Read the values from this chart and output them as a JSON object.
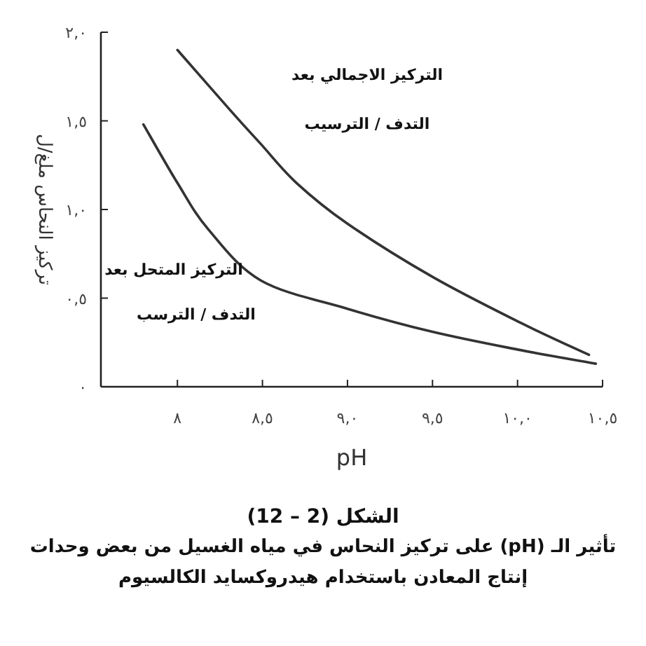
{
  "chart_data": {
    "type": "line",
    "title": "الشكل (2 – 12)",
    "subtitle": "تأثير الـ (pH) على تركيز النحاس في مياه الغسيل من بعض وحدات إنتاج المعادن باستخدام هيدروكسايد الكالسيوم",
    "xlabel": "pH",
    "ylabel": "تركيز النحاس ملغ/ل",
    "xlim": [
      7.55,
      10.5
    ],
    "ylim": [
      0,
      2.0
    ],
    "xticks": [
      {
        "value": 8,
        "label": "٨"
      },
      {
        "value": 8.5,
        "label": "٨,٥"
      },
      {
        "value": 9,
        "label": "٩,٠"
      },
      {
        "value": 9.5,
        "label": "٩,٥"
      },
      {
        "value": 10,
        "label": "١٠,٠"
      },
      {
        "value": 10.5,
        "label": "١٠,٥"
      }
    ],
    "yticks": [
      {
        "value": 0,
        "label": "٠"
      },
      {
        "value": 0.5,
        "label": "٠,٥"
      },
      {
        "value": 1,
        "label": "١,٠"
      },
      {
        "value": 1.5,
        "label": "١,٥"
      },
      {
        "value": 2,
        "label": "٢,٠"
      }
    ],
    "grid": false,
    "marker": "none",
    "line_style": "solid",
    "series": [
      {
        "color": "#333333",
        "x": [
          8.0,
          8.32,
          8.49,
          8.7,
          9.0,
          9.5,
          10.02,
          10.42
        ],
        "values": [
          1.9,
          1.55,
          1.37,
          1.15,
          0.92,
          0.62,
          0.36,
          0.18
        ]
      },
      {
        "color": "#333333",
        "x": [
          7.8,
          8.0,
          8.18,
          8.49,
          9.0,
          9.5,
          10.0,
          10.46
        ],
        "values": [
          1.48,
          1.15,
          0.89,
          0.6,
          0.44,
          0.31,
          0.21,
          0.13
        ]
      }
    ],
    "annotations": [
      "التركيز الاجمالي بعد",
      "التدف / الترسيب",
      "التركيز المتحل بعد",
      "التدف / الترسب"
    ]
  }
}
